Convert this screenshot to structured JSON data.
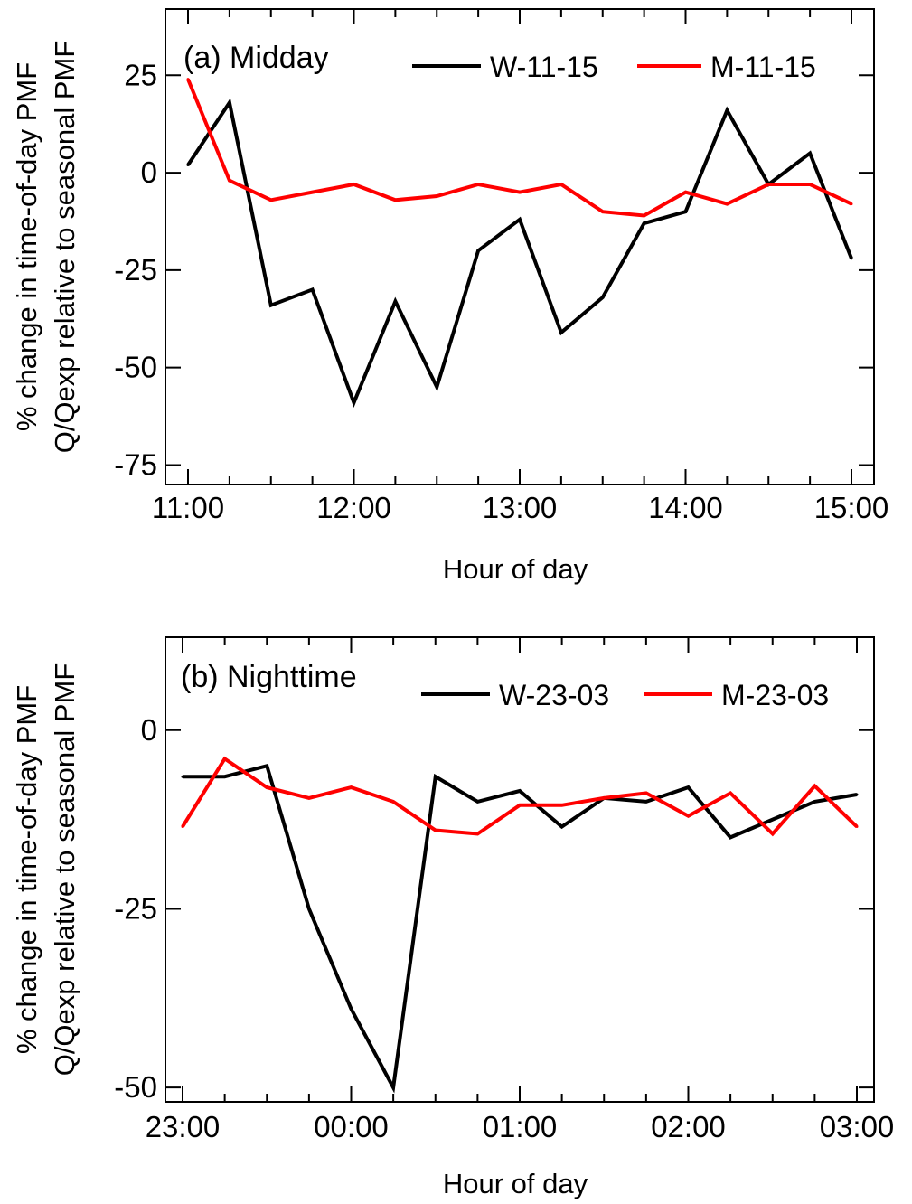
{
  "chart_data": [
    {
      "type": "line",
      "panel_label": "(a) Midday",
      "xlabel": "Hour of day",
      "ylabel_line1": "% change in time-of-day PMF",
      "ylabel_line2": "Q/Qexp relative to seasonal PMF",
      "x_tick_labels": [
        "11:00",
        "12:00",
        "13:00",
        "14:00",
        "15:00"
      ],
      "x_tick_positions": [
        0,
        4,
        8,
        12,
        16
      ],
      "x_range": [
        0,
        16
      ],
      "y_ticks": [
        25,
        0,
        -25,
        -50,
        -75
      ],
      "y_tick_labels": [
        "25",
        "0",
        "-25",
        "-50",
        "-75"
      ],
      "ylim": [
        -80,
        42
      ],
      "grid": false,
      "legend_position": "top-right",
      "series": [
        {
          "name": "W-11-15",
          "color": "#000000",
          "x": [
            0,
            1,
            2,
            3,
            4,
            5,
            6,
            7,
            8,
            9,
            10,
            11,
            12,
            13,
            14,
            15,
            16
          ],
          "values": [
            2,
            18,
            -34,
            -30,
            -59,
            -33,
            -55,
            -20,
            -12,
            -41,
            -32,
            -13,
            -10,
            16,
            -3,
            5,
            -22
          ]
        },
        {
          "name": "M-11-15",
          "color": "#ff0000",
          "x": [
            0,
            1,
            2,
            3,
            4,
            5,
            6,
            7,
            8,
            9,
            10,
            11,
            12,
            13,
            14,
            15,
            16
          ],
          "values": [
            24,
            -2,
            -7,
            -5,
            -3,
            -7,
            -6,
            -3,
            -5,
            -3,
            -10,
            -11,
            -5,
            -8,
            -3,
            -3,
            -8
          ]
        }
      ]
    },
    {
      "type": "line",
      "panel_label": "(b) Nighttime",
      "xlabel": "Hour of day",
      "ylabel_line1": "% change in time-of-day PMF",
      "ylabel_line2": "Q/Qexp relative to seasonal PMF",
      "x_tick_labels": [
        "23:00",
        "00:00",
        "01:00",
        "02:00",
        "03:00"
      ],
      "x_tick_positions": [
        0,
        4,
        8,
        12,
        16
      ],
      "x_range": [
        0,
        16
      ],
      "y_ticks": [
        0,
        -25,
        -50
      ],
      "y_tick_labels": [
        "0",
        "-25",
        "-50"
      ],
      "ylim": [
        -52,
        13
      ],
      "grid": false,
      "legend_position": "top-right",
      "series": [
        {
          "name": "W-23-03",
          "color": "#000000",
          "x": [
            0,
            1,
            2,
            3,
            4,
            5,
            6,
            7,
            8,
            9,
            10,
            11,
            12,
            13,
            14,
            15,
            16
          ],
          "values": [
            -6.5,
            -6.5,
            -5,
            -25,
            -39,
            -50,
            -6.5,
            -10,
            -8.5,
            -13.5,
            -9.5,
            -10,
            -8,
            -15,
            -12.5,
            -10,
            -9
          ]
        },
        {
          "name": "M-23-03",
          "color": "#ff0000",
          "x": [
            0,
            1,
            2,
            3,
            4,
            5,
            6,
            7,
            8,
            9,
            10,
            11,
            12,
            13,
            14,
            15,
            16
          ],
          "values": [
            -13.5,
            -4,
            -8,
            -9.5,
            -8,
            -10,
            -14,
            -14.5,
            -10.5,
            -10.5,
            -9.5,
            -8.8,
            -12,
            -8.8,
            -14.5,
            -7.8,
            -13.5
          ]
        }
      ]
    }
  ]
}
